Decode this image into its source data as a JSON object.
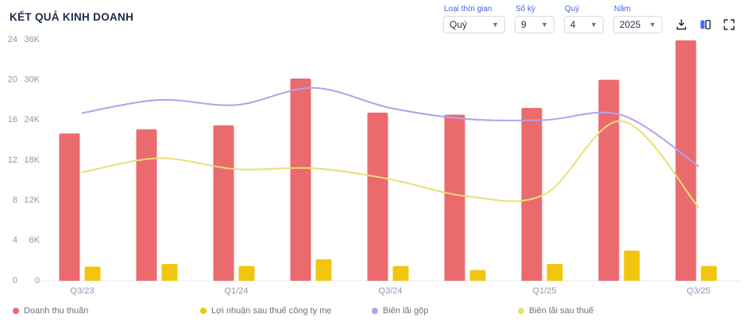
{
  "title": "KẾT QUẢ KINH DOANH",
  "controls": {
    "time_type": {
      "label": "Loại thời gian",
      "value": "Quý"
    },
    "periods": {
      "label": "Số kỳ",
      "value": "9"
    },
    "quarter": {
      "label": "Quý",
      "value": "4"
    },
    "year": {
      "label": "Năm",
      "value": "2025"
    }
  },
  "toolbar": {
    "icons": [
      "download-icon",
      "compare-table-icon",
      "fullscreen-icon"
    ]
  },
  "chart_data": {
    "type": "combo",
    "categories": [
      "Q3/23",
      "Q4/23",
      "Q1/24",
      "Q2/24",
      "Q3/24",
      "Q4/24",
      "Q1/25",
      "Q2/25",
      "Q3/25"
    ],
    "x_tick_labels": [
      "Q3/23",
      "",
      "Q1/24",
      "",
      "Q3/24",
      "",
      "Q1/25",
      "",
      "Q3/25"
    ],
    "axes": {
      "percent": {
        "side": "left-outer",
        "max": 24,
        "tick_labels": [
          "0",
          "4",
          "8",
          "12",
          "16",
          "20",
          "24"
        ]
      },
      "value": {
        "side": "left-inner",
        "max": 36000,
        "tick_labels": [
          "0",
          "6K",
          "12K",
          "18K",
          "24K",
          "30K",
          "36K"
        ]
      }
    },
    "series": [
      {
        "name": "Doanh thu thuần",
        "type": "bar",
        "axis": "value",
        "color": "#eb6a6e",
        "values": [
          22000,
          22600,
          23200,
          30200,
          25100,
          24800,
          25800,
          30000,
          35900
        ]
      },
      {
        "name": "Lợi nhuận sau thuế công ty mẹ",
        "type": "bar",
        "axis": "value",
        "color": "#f2c50f",
        "values": [
          2100,
          2500,
          2200,
          3200,
          2200,
          1600,
          2500,
          4500,
          2200
        ]
      },
      {
        "name": "Biên lãi gộp",
        "type": "line",
        "axis": "percent",
        "color": "#b2a1ec",
        "values": [
          16.7,
          18.0,
          17.5,
          19.2,
          17.2,
          16.1,
          16.0,
          16.5,
          11.4
        ]
      },
      {
        "name": "Biên lãi sau thuế",
        "type": "line",
        "axis": "percent",
        "color": "#e8df74",
        "values": [
          10.8,
          12.2,
          11.1,
          11.2,
          10.1,
          8.4,
          8.6,
          15.9,
          7.3
        ]
      }
    ],
    "grid": false,
    "legend_position": "bottom"
  }
}
